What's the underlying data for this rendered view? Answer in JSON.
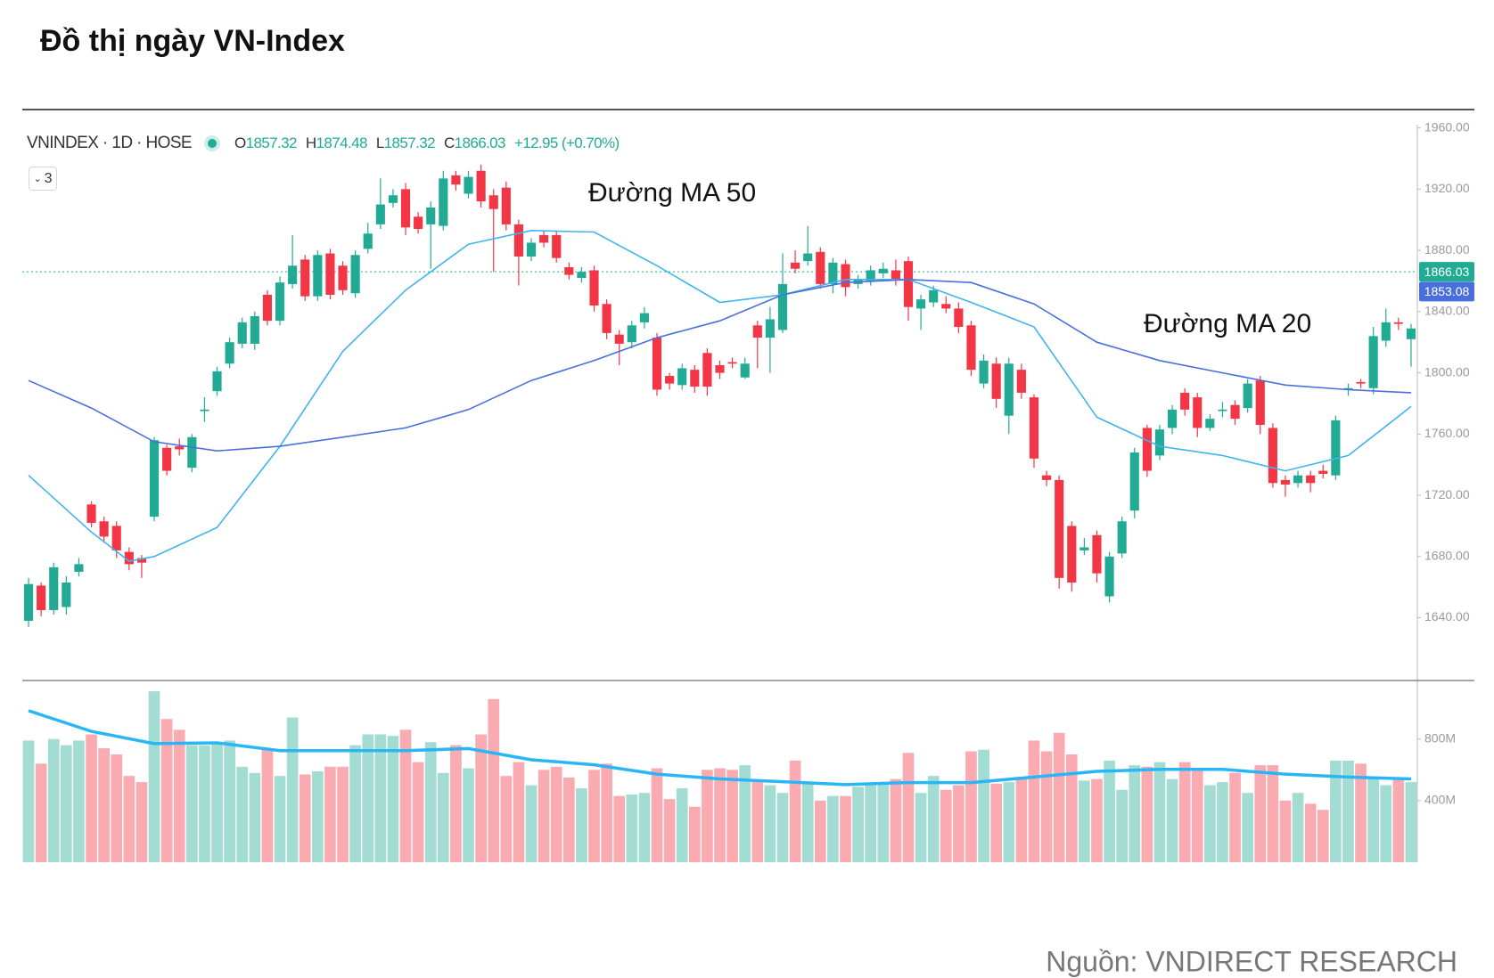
{
  "chart_data": {
    "type": "candlestick",
    "title": "Đồ thị ngày VN-Index",
    "symbol": "VNINDEX · 1D · HOSE",
    "ohlc": [
      {
        "label": "O",
        "value": 1857.32
      },
      {
        "label": "H",
        "value": 1874.48
      },
      {
        "label": "L",
        "value": 1857.32
      },
      {
        "label": "C",
        "value": 1866.03
      }
    ],
    "change": "+12.95 (+0.70%)",
    "interval_button": "3",
    "annotations": [
      "Đường MA 50",
      "Đường MA 20"
    ],
    "source": "Nguồn: VNDIRECT RESEARCH",
    "up_color": "#22ab94",
    "down_color": "#f23645",
    "open": [
      1638,
      1661,
      1645,
      1647,
      1670,
      1714,
      1703,
      1700,
      1683,
      1679,
      1706,
      1751,
      1752,
      1738,
      1775,
      1788,
      1806,
      1819,
      1819,
      1851,
      1834,
      1858,
      1874,
      1850,
      1878,
      1870,
      1852,
      1881,
      1897,
      1911,
      1920,
      1902,
      1897,
      1896,
      1929,
      1917,
      1932,
      1916,
      1921,
      1897,
      1876,
      1890,
      1890,
      1869,
      1862,
      1867,
      1845,
      1825,
      1820,
      1833,
      1823,
      1798,
      1792,
      1802,
      1813,
      1805,
      1807,
      1797,
      1831,
      1823,
      1828,
      1872,
      1873,
      1879,
      1858,
      1871,
      1858,
      1860,
      1865,
      1867,
      1873,
      1842,
      1846,
      1845,
      1842,
      1831,
      1793,
      1806,
      1772,
      1802,
      1784,
      1733,
      1730,
      1700,
      1684,
      1694,
      1654,
      1682,
      1710,
      1764,
      1746,
      1764,
      1787,
      1784,
      1764,
      1775,
      1779,
      1777,
      1795,
      1764,
      1730,
      1728,
      1733,
      1736,
      1733,
      1789,
      1794,
      1790,
      1821,
      1833,
      1822
    ],
    "high": [
      1666,
      1663,
      1676,
      1667,
      1679,
      1716,
      1706,
      1703,
      1686,
      1681,
      1758,
      1753,
      1757,
      1760,
      1784,
      1804,
      1823,
      1836,
      1840,
      1854,
      1863,
      1890,
      1877,
      1880,
      1881,
      1873,
      1880,
      1898,
      1927,
      1920,
      1924,
      1905,
      1912,
      1932,
      1932,
      1932,
      1936,
      1920,
      1925,
      1900,
      1888,
      1893,
      1893,
      1872,
      1869,
      1870,
      1848,
      1828,
      1834,
      1843,
      1826,
      1800,
      1806,
      1805,
      1816,
      1808,
      1810,
      1810,
      1834,
      1843,
      1878,
      1880,
      1896,
      1882,
      1875,
      1874,
      1864,
      1870,
      1872,
      1874,
      1876,
      1851,
      1857,
      1850,
      1846,
      1834,
      1812,
      1810,
      1810,
      1806,
      1786,
      1736,
      1733,
      1703,
      1692,
      1697,
      1683,
      1706,
      1751,
      1766,
      1766,
      1779,
      1790,
      1787,
      1773,
      1781,
      1782,
      1796,
      1798,
      1767,
      1733,
      1736,
      1736,
      1740,
      1772,
      1793,
      1796,
      1830,
      1842,
      1836,
      1832
    ],
    "low": [
      1634,
      1641,
      1642,
      1642,
      1667,
      1699,
      1689,
      1679,
      1671,
      1666,
      1703,
      1733,
      1746,
      1735,
      1768,
      1785,
      1803,
      1816,
      1815,
      1831,
      1831,
      1855,
      1847,
      1847,
      1848,
      1851,
      1849,
      1878,
      1894,
      1908,
      1890,
      1891,
      1868,
      1893,
      1919,
      1914,
      1908,
      1866,
      1893,
      1857,
      1873,
      1882,
      1872,
      1861,
      1859,
      1840,
      1822,
      1805,
      1816,
      1829,
      1785,
      1789,
      1789,
      1787,
      1785,
      1796,
      1803,
      1796,
      1803,
      1800,
      1826,
      1865,
      1870,
      1855,
      1852,
      1850,
      1855,
      1857,
      1862,
      1857,
      1834,
      1828,
      1843,
      1839,
      1826,
      1798,
      1790,
      1777,
      1760,
      1783,
      1738,
      1726,
      1659,
      1657,
      1681,
      1663,
      1650,
      1679,
      1705,
      1732,
      1743,
      1760,
      1772,
      1758,
      1762,
      1771,
      1766,
      1774,
      1760,
      1725,
      1719,
      1725,
      1722,
      1731,
      1730,
      1785,
      1790,
      1786,
      1817,
      1828,
      1804
    ],
    "close": [
      1662,
      1645,
      1673,
      1663,
      1675,
      1702,
      1693,
      1684,
      1675,
      1676,
      1756,
      1736,
      1750,
      1758,
      1776,
      1801,
      1820,
      1833,
      1837,
      1834,
      1859,
      1870,
      1850,
      1877,
      1851,
      1854,
      1877,
      1891,
      1910,
      1916,
      1895,
      1894,
      1908,
      1927,
      1923,
      1928,
      1912,
      1907,
      1897,
      1876,
      1885,
      1885,
      1875,
      1864,
      1866,
      1844,
      1826,
      1819,
      1831,
      1839,
      1789,
      1793,
      1803,
      1791,
      1791,
      1800,
      1806,
      1806,
      1823,
      1835,
      1858,
      1868,
      1878,
      1858,
      1872,
      1856,
      1861,
      1867,
      1868,
      1861,
      1843,
      1848,
      1854,
      1842,
      1830,
      1802,
      1808,
      1783,
      1806,
      1787,
      1744,
      1730,
      1666,
      1663,
      1686,
      1669,
      1680,
      1703,
      1748,
      1736,
      1763,
      1776,
      1776,
      1764,
      1770,
      1776,
      1770,
      1793,
      1766,
      1728,
      1727,
      1733,
      1728,
      1734,
      1769,
      1790,
      1793,
      1824,
      1833,
      1832,
      1829
    ],
    "ylim": [
      1599,
      1972
    ],
    "yticks": [
      {
        "value": 1640,
        "label": "1640.00"
      },
      {
        "value": 1680,
        "label": "1680.00"
      },
      {
        "value": 1720,
        "label": "1720.00"
      },
      {
        "value": 1760,
        "label": "1760.00"
      },
      {
        "value": 1800,
        "label": "1800.00"
      },
      {
        "value": 1840,
        "label": "1840.00"
      },
      {
        "value": 1880,
        "label": "1880.00"
      },
      {
        "value": 1920,
        "label": "1920.00"
      },
      {
        "value": 1960,
        "label": "1960.00"
      }
    ],
    "last_price": {
      "value": 1866.03,
      "label": "1866.03",
      "color": "#22ab94"
    },
    "ma_price": {
      "value": 1853.08,
      "label": "1853.08",
      "color": "#4a6fdc"
    },
    "overlays": [
      {
        "color": "#3fb4ee",
        "x": [
          0,
          5,
          8,
          10,
          15,
          20,
          25,
          30,
          35,
          40,
          45,
          50,
          55,
          60,
          65,
          70,
          75,
          80,
          85,
          90,
          95,
          100,
          105,
          110
        ],
        "values": [
          1733,
          1696,
          1677,
          1680,
          1699,
          1752,
          1814,
          1854,
          1884,
          1893,
          1892,
          1870,
          1846,
          1851,
          1861,
          1861,
          1846,
          1830,
          1771,
          1752,
          1746,
          1736,
          1746,
          1778
        ]
      },
      {
        "color": "#4a6fdc",
        "x": [
          0,
          5,
          10,
          15,
          20,
          25,
          30,
          35,
          40,
          45,
          50,
          55,
          60,
          65,
          70,
          75,
          80,
          85,
          90,
          95,
          100,
          105,
          110
        ],
        "values": [
          1795,
          1777,
          1755,
          1749,
          1752,
          1758,
          1764,
          1776,
          1795,
          1808,
          1823,
          1834,
          1851,
          1859,
          1861,
          1859,
          1845,
          1820,
          1808,
          1800,
          1792,
          1789,
          1787
        ]
      }
    ],
    "volume": {
      "values": [
        790,
        640,
        800,
        760,
        790,
        830,
        740,
        700,
        560,
        520,
        1110,
        930,
        860,
        760,
        760,
        770,
        790,
        620,
        580,
        740,
        560,
        940,
        570,
        590,
        620,
        620,
        760,
        830,
        830,
        820,
        860,
        650,
        780,
        580,
        760,
        610,
        830,
        1060,
        560,
        650,
        500,
        600,
        620,
        550,
        480,
        600,
        640,
        430,
        440,
        450,
        610,
        410,
        480,
        360,
        600,
        610,
        600,
        630,
        530,
        500,
        450,
        660,
        520,
        400,
        430,
        430,
        490,
        510,
        520,
        540,
        710,
        450,
        560,
        470,
        500,
        720,
        730,
        510,
        520,
        550,
        790,
        720,
        840,
        700,
        530,
        540,
        660,
        470,
        630,
        620,
        650,
        540,
        650,
        610,
        500,
        520,
        580,
        450,
        630,
        630,
        400,
        450,
        380,
        340,
        660,
        660,
        640,
        540,
        500,
        540,
        520
      ],
      "ylim": [
        0,
        1180
      ],
      "yticks": [
        {
          "value": 400,
          "label": "400M"
        },
        {
          "value": 800,
          "label": "800M"
        }
      ],
      "ma": {
        "color": "#29b6f6",
        "x": [
          0,
          5,
          10,
          15,
          20,
          25,
          30,
          35,
          40,
          45,
          50,
          55,
          60,
          65,
          70,
          75,
          80,
          85,
          90,
          95,
          100,
          105,
          110
        ],
        "values": [
          984,
          850,
          770,
          775,
          725,
          725,
          725,
          738,
          665,
          633,
          572,
          541,
          523,
          504,
          517,
          517,
          553,
          590,
          603,
          603,
          572,
          553,
          541
        ]
      }
    }
  }
}
